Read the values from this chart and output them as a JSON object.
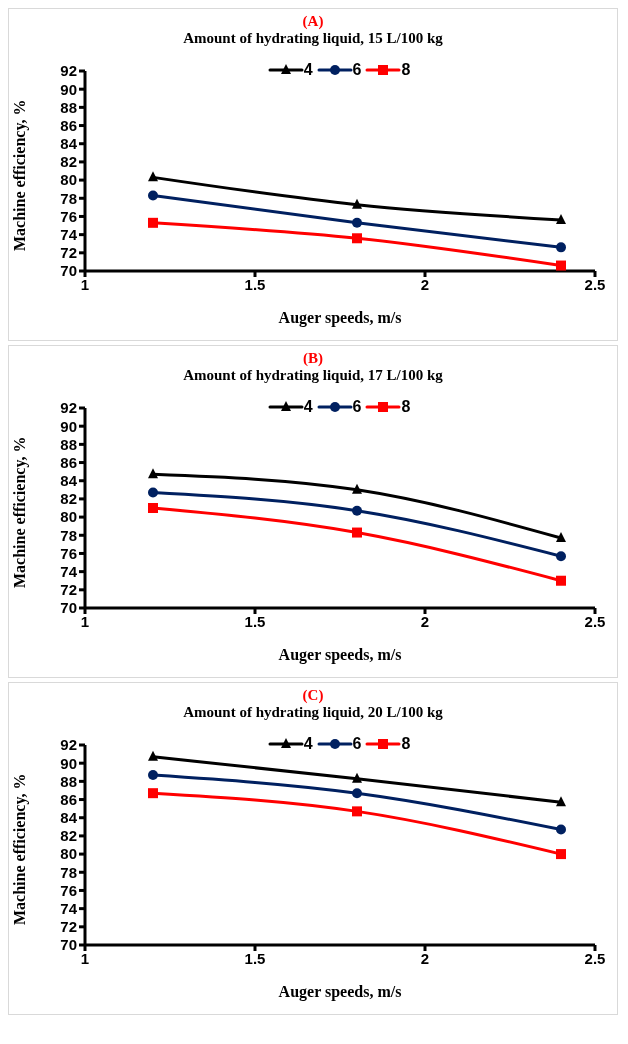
{
  "chart_data": [
    {
      "type": "line",
      "title": "(A)",
      "subtitle": "Amount of hydrating liquid, 15 L/100 kg",
      "xlabel": "Auger speeds, m/s",
      "ylabel": "Machine efficiency,  %",
      "x": [
        1.2,
        1.8,
        2.4
      ],
      "xlim": [
        1,
        2.5
      ],
      "xticks": [
        1,
        1.5,
        2,
        2.5
      ],
      "ylim": [
        70,
        92
      ],
      "yticks": [
        70,
        72,
        74,
        76,
        78,
        80,
        82,
        84,
        86,
        88,
        90,
        92
      ],
      "grid": false,
      "legend": "top",
      "series": [
        {
          "name": "4",
          "color": "#000000",
          "marker": "triangle",
          "values": [
            80.3,
            77.3,
            75.6
          ]
        },
        {
          "name": "6",
          "color": "#002060",
          "marker": "circle",
          "values": [
            78.3,
            75.3,
            72.6
          ]
        },
        {
          "name": "8",
          "color": "#ff0000",
          "marker": "square",
          "values": [
            75.3,
            73.6,
            70.6
          ]
        }
      ]
    },
    {
      "type": "line",
      "title": "(B)",
      "subtitle": "Amount of hydrating liquid, 17 L/100 kg",
      "xlabel": "Auger speeds, m/s",
      "ylabel": "Machine efficiency,  %",
      "x": [
        1.2,
        1.8,
        2.4
      ],
      "xlim": [
        1,
        2.5
      ],
      "xticks": [
        1,
        1.5,
        2,
        2.5
      ],
      "ylim": [
        70,
        92
      ],
      "yticks": [
        70,
        72,
        74,
        76,
        78,
        80,
        82,
        84,
        86,
        88,
        90,
        92
      ],
      "grid": false,
      "legend": "top",
      "series": [
        {
          "name": "4",
          "color": "#000000",
          "marker": "triangle",
          "values": [
            84.7,
            83,
            77.7
          ]
        },
        {
          "name": "6",
          "color": "#002060",
          "marker": "circle",
          "values": [
            82.7,
            80.7,
            75.7
          ]
        },
        {
          "name": "8",
          "color": "#ff0000",
          "marker": "square",
          "values": [
            81,
            78.3,
            73
          ]
        }
      ]
    },
    {
      "type": "line",
      "title": "(C)",
      "subtitle": "Amount of hydrating liquid, 20 L/100 kg",
      "xlabel": "Auger speeds, m/s",
      "ylabel": "Machine efficiency,  %",
      "x": [
        1.2,
        1.8,
        2.4
      ],
      "xlim": [
        1,
        2.5
      ],
      "xticks": [
        1,
        1.5,
        2,
        2.5
      ],
      "ylim": [
        70,
        92
      ],
      "yticks": [
        70,
        72,
        74,
        76,
        78,
        80,
        82,
        84,
        86,
        88,
        90,
        92
      ],
      "grid": false,
      "legend": "top",
      "series": [
        {
          "name": "4",
          "color": "#000000",
          "marker": "triangle",
          "values": [
            90.7,
            88.3,
            85.7
          ]
        },
        {
          "name": "6",
          "color": "#002060",
          "marker": "circle",
          "values": [
            88.7,
            86.7,
            82.7
          ]
        },
        {
          "name": "8",
          "color": "#ff0000",
          "marker": "square",
          "values": [
            86.7,
            84.7,
            80
          ]
        }
      ]
    }
  ]
}
